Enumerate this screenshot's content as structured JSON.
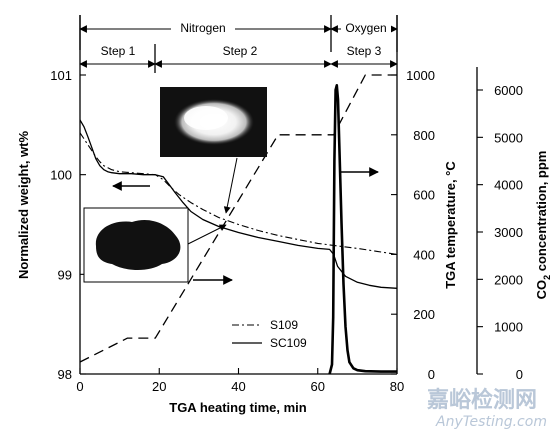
{
  "chart_data": {
    "type": "line",
    "xlabel": "TGA heating time, min",
    "ylabel_left": "Normalized weight, wt%",
    "ylabel_mid": "TGA temperature, °C",
    "ylabel_right_prefix": "CO",
    "ylabel_right_sub": "2",
    "ylabel_right_suffix": " concentration, ppm",
    "xlim": [
      0,
      80
    ],
    "ylim_left": [
      98,
      101
    ],
    "ylim_mid": [
      0,
      1000
    ],
    "ylim_right": [
      0,
      6500
    ],
    "x_ticks": [
      "0",
      "20",
      "40",
      "60",
      "80"
    ],
    "y_left_ticks": [
      "98",
      "99",
      "100",
      "101"
    ],
    "y_mid_ticks": [
      "0",
      "200",
      "400",
      "600",
      "800",
      "1000"
    ],
    "y_right_ticks": [
      "0",
      "1000",
      "2000",
      "3000",
      "4000",
      "5000",
      "6000"
    ],
    "phases": [
      {
        "label": "Nitrogen",
        "x_start": 0,
        "x_end": 63
      },
      {
        "label": "Oxygen",
        "x_start": 63,
        "x_end": 80
      }
    ],
    "steps": [
      {
        "label": "Step 1",
        "x_start": 0,
        "x_end": 19
      },
      {
        "label": "Step 2",
        "x_start": 19,
        "x_end": 63
      },
      {
        "label": "Step 3",
        "x_start": 63,
        "x_end": 80
      }
    ],
    "legend": {
      "position": "bottom-right",
      "entries": [
        "S109",
        "SC109"
      ]
    },
    "series": [
      {
        "name": "S109",
        "axis": "left",
        "style": "dash-dot",
        "x": [
          0,
          1,
          2,
          3,
          4,
          5,
          6,
          8,
          10,
          13,
          16,
          19,
          21,
          23,
          25,
          28,
          31,
          35,
          40,
          45,
          50,
          55,
          60,
          64,
          70,
          75,
          80
        ],
        "y": [
          100.42,
          100.36,
          100.3,
          100.24,
          100.18,
          100.13,
          100.09,
          100.05,
          100.03,
          100.02,
          100.01,
          100.0,
          99.95,
          99.87,
          99.8,
          99.72,
          99.65,
          99.57,
          99.5,
          99.44,
          99.39,
          99.35,
          99.31,
          99.29,
          99.26,
          99.23,
          99.2
        ]
      },
      {
        "name": "SC109",
        "axis": "left",
        "style": "solid",
        "x": [
          0,
          1,
          2,
          3,
          4,
          5,
          6,
          7,
          8,
          10,
          13,
          16,
          19,
          21,
          22.5,
          24,
          26,
          28,
          31,
          35,
          40,
          45,
          50,
          55,
          60,
          63,
          64,
          65,
          67,
          70,
          73,
          76,
          80
        ],
        "y": [
          100.55,
          100.48,
          100.38,
          100.27,
          100.16,
          100.09,
          100.05,
          100.03,
          100.02,
          100.01,
          100.01,
          100.0,
          100.0,
          99.98,
          99.9,
          99.82,
          99.72,
          99.63,
          99.55,
          99.48,
          99.42,
          99.37,
          99.33,
          99.29,
          99.26,
          99.25,
          99.2,
          99.08,
          98.98,
          98.92,
          98.89,
          98.87,
          98.86
        ]
      },
      {
        "name": "TGA temperature",
        "axis": "mid",
        "style": "dashed",
        "x": [
          0,
          12,
          19,
          50,
          60,
          64,
          72,
          80
        ],
        "y": [
          40,
          120,
          120,
          800,
          800,
          800,
          1000,
          1000
        ]
      },
      {
        "name": "CO2 concentration",
        "axis": "right",
        "style": "bold",
        "x": [
          63,
          63.6,
          63.9,
          64.2,
          64.5,
          64.8,
          65.1,
          65.5,
          66,
          66.5,
          67,
          67.5,
          68,
          69,
          70,
          72,
          76,
          80
        ],
        "y": [
          0,
          200,
          1200,
          4500,
          6000,
          6100,
          5800,
          4700,
          3200,
          1900,
          1000,
          500,
          250,
          120,
          80,
          60,
          50,
          50
        ]
      }
    ]
  },
  "images": [
    {
      "name": "white-powder-photo"
    },
    {
      "name": "black-powder-photo"
    }
  ],
  "watermark": {
    "cn": "嘉峪检测网",
    "en": "AnyTesting.com"
  }
}
